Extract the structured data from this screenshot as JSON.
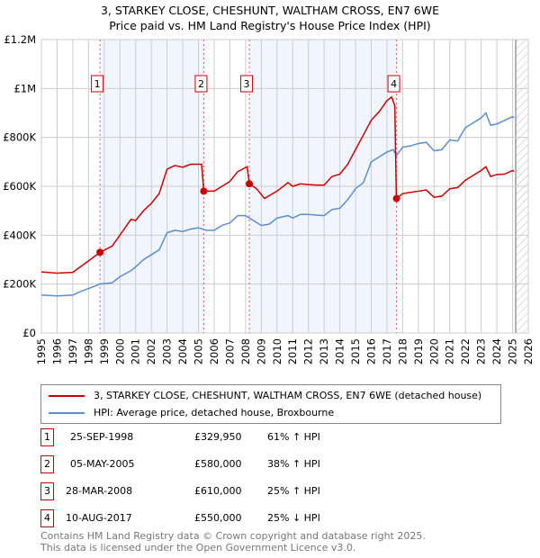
{
  "title": "3, STARKEY CLOSE, CHESHUNT, WALTHAM CROSS, EN7 6WE",
  "subtitle": "Price paid vs. HM Land Registry's House Price Index (HPI)",
  "chart_data": {
    "type": "line",
    "title": "3, STARKEY CLOSE, CHESHUNT, WALTHAM CROSS, EN7 6WE",
    "subtitle": "Price paid vs. HM Land Registry's House Price Index (HPI)",
    "xlim": [
      1995,
      2026
    ],
    "ylim": [
      0,
      1200000
    ],
    "x_ticks": [
      "1995",
      "1996",
      "1997",
      "1998",
      "1999",
      "2000",
      "2001",
      "2002",
      "2003",
      "2004",
      "2005",
      "2006",
      "2007",
      "2008",
      "2009",
      "2010",
      "2011",
      "2012",
      "2013",
      "2014",
      "2015",
      "2016",
      "2017",
      "2018",
      "2019",
      "2020",
      "2021",
      "2022",
      "2023",
      "2024",
      "2025",
      "2026"
    ],
    "y_ticks": [
      {
        "v": 0,
        "label": "£0"
      },
      {
        "v": 200000,
        "label": "£200K"
      },
      {
        "v": 400000,
        "label": "£400K"
      },
      {
        "v": 600000,
        "label": "£600K"
      },
      {
        "v": 800000,
        "label": "£800K"
      },
      {
        "v": 1000000,
        "label": "£1M"
      },
      {
        "v": 1200000,
        "label": "£1.2M"
      }
    ],
    "grid": true,
    "series": [
      {
        "name": "3, STARKEY CLOSE, CHESHUNT, WALTHAM CROSS, EN7 6WE (detached house)",
        "color": "#cc0000",
        "x": [
          1995,
          1996,
          1997,
          1998,
          1998.73,
          1999.5,
          2000,
          2000.7,
          2001,
          2001.5,
          2002,
          2002.5,
          2003,
          2003.5,
          2004,
          2004.5,
          2005.2,
          2005.34,
          2006,
          2006.5,
          2007,
          2007.5,
          2008.1,
          2008.24,
          2008.7,
          2009.2,
          2010,
          2010.7,
          2011,
          2011.5,
          2012,
          2012.5,
          2013,
          2013.5,
          2014,
          2014.5,
          2015,
          2015.5,
          2016,
          2016.5,
          2017,
          2017.3,
          2017.5,
          2017.6,
          2018,
          2018.5,
          2019,
          2019.5,
          2020,
          2020.5,
          2021,
          2021.5,
          2022,
          2022.5,
          2023,
          2023.3,
          2023.6,
          2024,
          2024.5,
          2025,
          2025.1
        ],
        "y": [
          250000,
          245000,
          248000,
          295000,
          329950,
          355000,
          400000,
          465000,
          460000,
          500000,
          530000,
          570000,
          670000,
          685000,
          678000,
          690000,
          690000,
          580000,
          580000,
          600000,
          620000,
          660000,
          680000,
          610000,
          590000,
          550000,
          580000,
          615000,
          600000,
          610000,
          607000,
          605000,
          605000,
          640000,
          650000,
          690000,
          750000,
          810000,
          870000,
          905000,
          950000,
          965000,
          930000,
          550000,
          570000,
          575000,
          580000,
          585000,
          555000,
          560000,
          590000,
          595000,
          625000,
          645000,
          665000,
          680000,
          640000,
          648000,
          650000,
          665000,
          660000
        ]
      },
      {
        "name": "HPI: Average price, detached house, Broxbourne",
        "color": "#5b8dd0",
        "x": [
          1995,
          1996,
          1997,
          1997.5,
          1998,
          1998.73,
          1999.5,
          2000,
          2000.7,
          2001,
          2001.5,
          2002,
          2002.5,
          2003,
          2003.5,
          2004,
          2004.5,
          2005,
          2005.5,
          2006,
          2006.5,
          2007,
          2007.5,
          2008,
          2008.5,
          2009,
          2009.5,
          2010,
          2010.7,
          2011,
          2011.5,
          2012,
          2012.5,
          2013,
          2013.5,
          2014,
          2014.5,
          2015,
          2015.5,
          2016,
          2016.5,
          2017,
          2017.4,
          2017.6,
          2018,
          2018.5,
          2019,
          2019.5,
          2020,
          2020.5,
          2021,
          2021.5,
          2022,
          2022.5,
          2023,
          2023.3,
          2023.6,
          2024,
          2024.5,
          2025,
          2025.1
        ],
        "y": [
          155000,
          152000,
          155000,
          170000,
          182000,
          200000,
          205000,
          230000,
          255000,
          270000,
          300000,
          320000,
          340000,
          410000,
          420000,
          415000,
          425000,
          430000,
          420000,
          420000,
          440000,
          450000,
          480000,
          480000,
          460000,
          440000,
          445000,
          470000,
          480000,
          470000,
          485000,
          485000,
          482000,
          480000,
          505000,
          510000,
          545000,
          590000,
          615000,
          700000,
          720000,
          740000,
          750000,
          725000,
          760000,
          765000,
          775000,
          780000,
          745000,
          750000,
          790000,
          785000,
          840000,
          860000,
          880000,
          900000,
          850000,
          855000,
          870000,
          885000,
          880000
        ]
      }
    ],
    "sales": [
      {
        "n": "1",
        "x": 1998.73,
        "y": 329950
      },
      {
        "n": "2",
        "x": 2005.34,
        "y": 580000
      },
      {
        "n": "3",
        "x": 2008.24,
        "y": 610000
      },
      {
        "n": "4",
        "x": 2017.61,
        "y": 550000
      }
    ],
    "shaded": [
      [
        1998.73,
        2005.34
      ],
      [
        2008.24,
        2017.61
      ]
    ],
    "hatched_from": 2025.2,
    "legend_position": "below"
  },
  "legend": [
    "3, STARKEY CLOSE, CHESHUNT, WALTHAM CROSS, EN7 6WE (detached house)",
    "HPI: Average price, detached house, Broxbourne"
  ],
  "table": [
    {
      "n": "1",
      "date": "25-SEP-1998",
      "price": "£329,950",
      "hpi": "61% ↑ HPI"
    },
    {
      "n": "2",
      "date": "05-MAY-2005",
      "price": "£580,000",
      "hpi": "38% ↑ HPI"
    },
    {
      "n": "3",
      "date": "28-MAR-2008",
      "price": "£610,000",
      "hpi": "25% ↑ HPI"
    },
    {
      "n": "4",
      "date": "10-AUG-2017",
      "price": "£550,000",
      "hpi": "25% ↓ HPI"
    }
  ],
  "footer": [
    "Contains HM Land Registry data © Crown copyright and database right 2025.",
    "This data is licensed under the Open Government Licence v3.0."
  ]
}
